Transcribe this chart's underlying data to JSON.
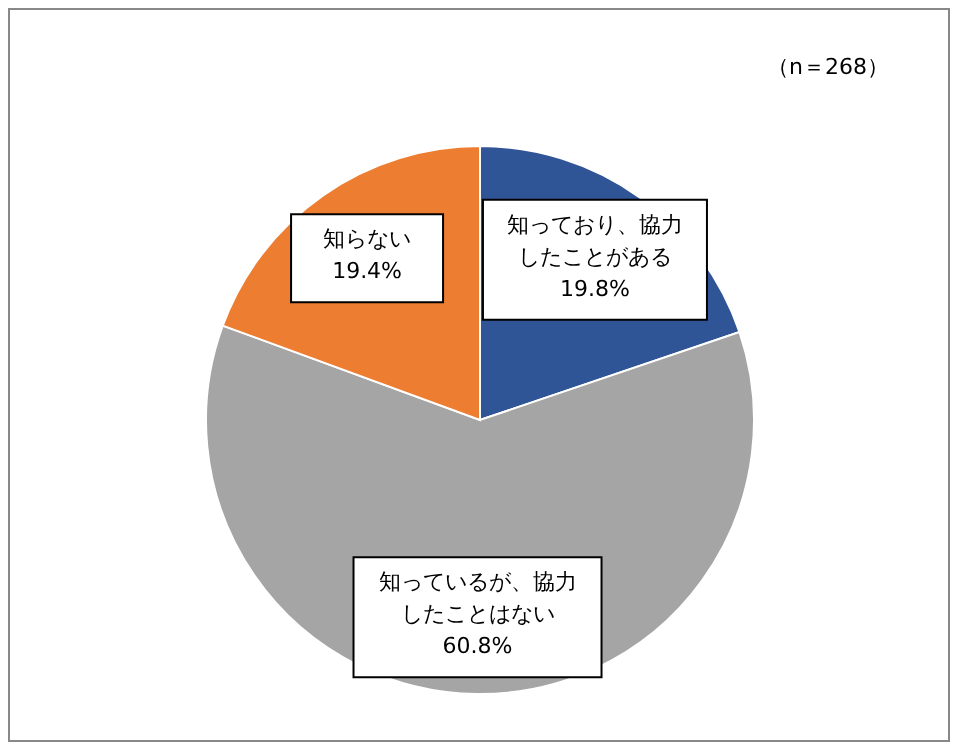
{
  "chart_data": {
    "type": "pie",
    "categories": [
      "知っており、協力したことがある",
      "知っているが、協力したことはない",
      "知らない"
    ],
    "values": [
      19.8,
      60.8,
      19.4
    ],
    "colors": [
      "#2f5597",
      "#a5a5a5",
      "#ed7d31"
    ],
    "value_labels": [
      "19.8%",
      "60.8%",
      "19.4%"
    ],
    "annotations": [
      "（n＝268）"
    ]
  }
}
